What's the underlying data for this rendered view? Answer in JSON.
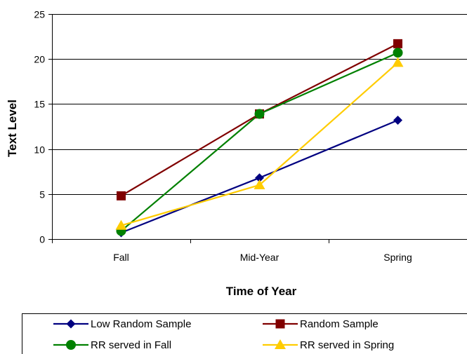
{
  "chart_data": {
    "type": "line",
    "title": "",
    "xlabel": "Time of Year",
    "ylabel": "Text Level",
    "categories": [
      "Fall",
      "Mid-Year",
      "Spring"
    ],
    "ylim": [
      0,
      25
    ],
    "yticks": [
      0,
      5,
      10,
      15,
      20,
      25
    ],
    "grid": true,
    "legend_position": "bottom",
    "series": [
      {
        "name": "Low Random Sample",
        "values": [
          0.7,
          6.8,
          13.2
        ],
        "color": "#000080",
        "marker": "diamond"
      },
      {
        "name": "Random Sample",
        "values": [
          4.8,
          13.9,
          21.7
        ],
        "color": "#800000",
        "marker": "square"
      },
      {
        "name": "RR served in Fall",
        "values": [
          0.9,
          13.9,
          20.7
        ],
        "color": "#008000",
        "marker": "circle"
      },
      {
        "name": "RR served in Spring",
        "values": [
          1.5,
          6.0,
          19.6
        ],
        "color": "#FFCC00",
        "marker": "triangle"
      }
    ]
  }
}
